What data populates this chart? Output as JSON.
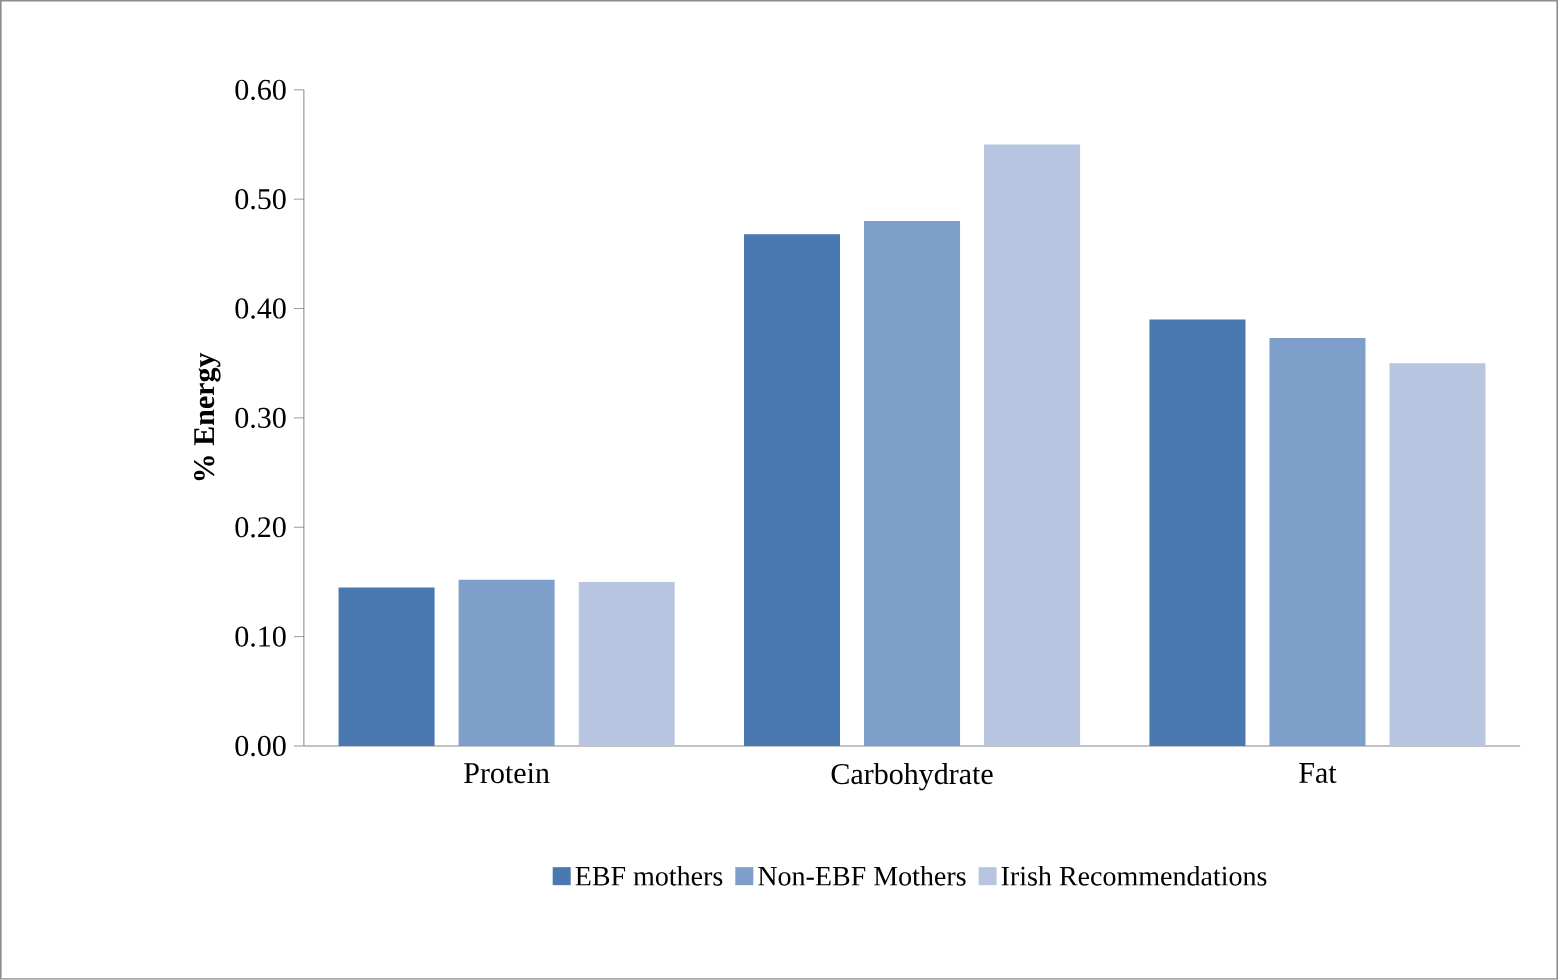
{
  "chart_data": {
    "type": "bar",
    "ylabel": "% Energy",
    "categories": [
      "Protein",
      "Carbohydrate",
      "Fat"
    ],
    "series": [
      {
        "name": "EBF mothers",
        "color": "#4a78b0",
        "values": [
          0.145,
          0.468,
          0.39
        ]
      },
      {
        "name": "Non-EBF Mothers",
        "color": "#7f9fcb",
        "values": [
          0.152,
          0.48,
          0.373
        ]
      },
      {
        "name": "Irish Recommendations",
        "color": "#b7c5e0",
        "values": [
          0.15,
          0.55,
          0.35
        ]
      }
    ],
    "ylim": [
      0,
      0.6
    ],
    "yticks": [
      {
        "value": 0,
        "label": "0.00"
      },
      {
        "value": 0.1,
        "label": "0.10"
      },
      {
        "value": 0.2,
        "label": "0.20"
      },
      {
        "value": 0.3,
        "label": "0.30"
      },
      {
        "value": 0.4,
        "label": "0.40"
      },
      {
        "value": 0.5,
        "label": "0.50"
      },
      {
        "value": 0.6,
        "label": "0.60"
      }
    ],
    "legend": "bottom",
    "grid": false
  }
}
